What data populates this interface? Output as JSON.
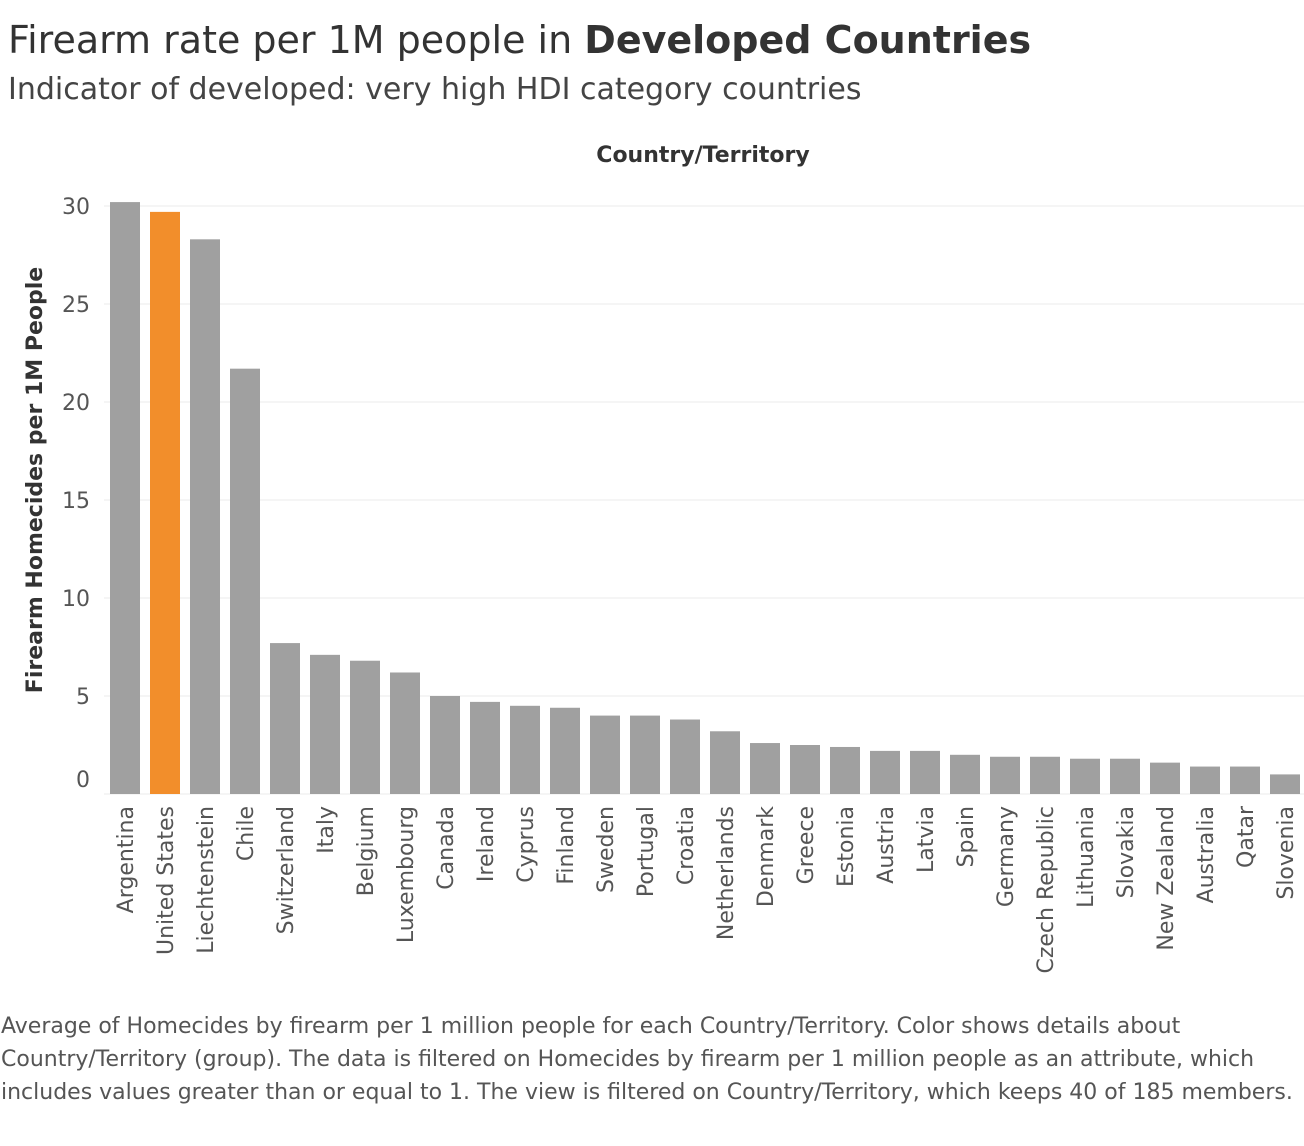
{
  "header": {
    "title_prefix": "Firearm rate per 1M people in ",
    "title_bold": "Developed Countries",
    "subtitle": "Indicator of developed: very high HDI category countries"
  },
  "caption": "Average of Homecides by firearm per 1 million people for each Country/Territory.  Color shows details about Country/Territory (group). The data is filtered on Homecides by firearm per 1 million people as an attribute, which includes values greater than or equal to 1. The view is filtered on Country/Territory, which keeps 40 of 185 members.",
  "colors": {
    "default_bar": "#a0a0a0",
    "highlight_bar": "#f28e2b",
    "gridline": "#ebebeb",
    "tick_text": "#555555",
    "axis_text": "#333333"
  },
  "chart_data": {
    "type": "bar",
    "title": "Firearm rate per 1M people in Developed Countries",
    "subtitle": "Indicator of developed: very high HDI category countries",
    "xlabel": "Country/Territory",
    "ylabel": "Firearm Homecides per 1M People",
    "ylim": [
      0,
      30
    ],
    "yticks": [
      0,
      5,
      10,
      15,
      20,
      25,
      30
    ],
    "grid": true,
    "highlight": "United States",
    "categories": [
      "Argentina",
      "United States",
      "Liechtenstein",
      "Chile",
      "Switzerland",
      "Italy",
      "Belgium",
      "Luxembourg",
      "Canada",
      "Ireland",
      "Cyprus",
      "Finland",
      "Sweden",
      "Portugal",
      "Croatia",
      "Netherlands",
      "Denmark",
      "Greece",
      "Estonia",
      "Austria",
      "Latvia",
      "Spain",
      "Germany",
      "Czech Republic",
      "Lithuania",
      "Slovakia",
      "New Zealand",
      "Australia",
      "Qatar",
      "Slovenia"
    ],
    "values": [
      30.2,
      29.7,
      28.3,
      21.7,
      7.7,
      7.1,
      6.8,
      6.2,
      5.0,
      4.7,
      4.5,
      4.4,
      4.0,
      4.0,
      3.8,
      3.2,
      2.6,
      2.5,
      2.4,
      2.2,
      2.2,
      2.0,
      1.9,
      1.9,
      1.8,
      1.8,
      1.6,
      1.4,
      1.4,
      1.0
    ]
  }
}
